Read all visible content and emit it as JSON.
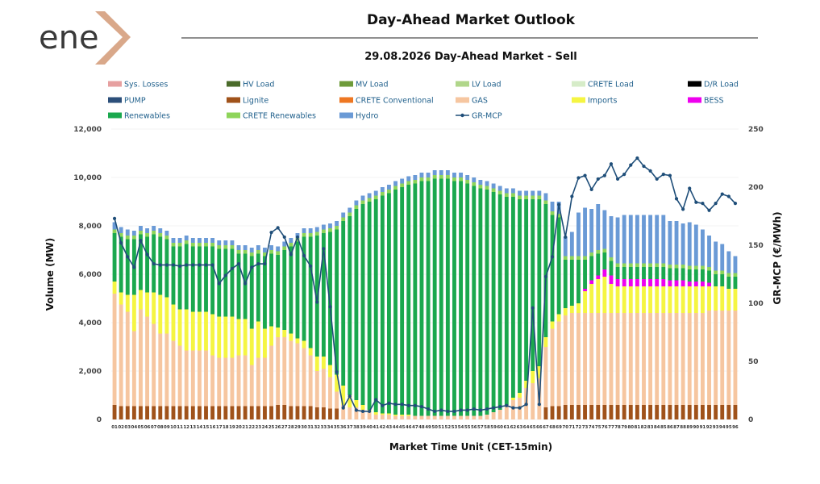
{
  "logo": {
    "text": "ene",
    "accent_color": "#d9a88a"
  },
  "chart_data": {
    "type": "bar",
    "title": "Day-Ahead Market Outlook",
    "subtitle": "29.08.2026  Day-Ahead Market - Sell",
    "xlabel": "Market Time Unit (CET-15min)",
    "ylabel": "Volume (MW)",
    "y2label": "GR-MCP (€/MWh)",
    "ylim": [
      0,
      12000
    ],
    "y2lim": [
      0,
      250
    ],
    "yticks": [
      "0",
      "2,000",
      "4,000",
      "6,000",
      "8,000",
      "10,000",
      "12,000"
    ],
    "y2ticks": [
      "0",
      "50",
      "100",
      "150",
      "200",
      "250"
    ],
    "categories": [
      "01",
      "02",
      "03",
      "04",
      "05",
      "06",
      "07",
      "08",
      "09",
      "10",
      "11",
      "12",
      "13",
      "14",
      "15",
      "16",
      "17",
      "18",
      "19",
      "20",
      "21",
      "22",
      "23",
      "24",
      "25",
      "26",
      "27",
      "28",
      "29",
      "30",
      "31",
      "32",
      "33",
      "34",
      "35",
      "36",
      "37",
      "38",
      "39",
      "40",
      "41",
      "42",
      "43",
      "44",
      "45",
      "46",
      "47",
      "48",
      "49",
      "50",
      "51",
      "52",
      "53",
      "54",
      "55",
      "56",
      "57",
      "58",
      "59",
      "60",
      "61",
      "62",
      "63",
      "64",
      "65",
      "66",
      "67",
      "68",
      "69",
      "70",
      "71",
      "72",
      "73",
      "74",
      "75",
      "76",
      "77",
      "78",
      "79",
      "80",
      "81",
      "82",
      "83",
      "84",
      "85",
      "86",
      "87",
      "88",
      "89",
      "90",
      "91",
      "92",
      "93",
      "94",
      "95",
      "96"
    ],
    "legend": [
      {
        "name": "Sys. Losses",
        "color": "#e6a0a0"
      },
      {
        "name": "HV Load",
        "color": "#4a6b2a"
      },
      {
        "name": "MV Load",
        "color": "#6e9b3a"
      },
      {
        "name": "LV Load",
        "color": "#b0d68a"
      },
      {
        "name": "CRETE Load",
        "color": "#d6ecc8"
      },
      {
        "name": "D/R Load",
        "color": "#000000"
      },
      {
        "name": "PUMP",
        "color": "#2c4f7a"
      },
      {
        "name": "Lignite",
        "color": "#a0521a"
      },
      {
        "name": "CRETE Conventional",
        "color": "#ee7722"
      },
      {
        "name": "GAS",
        "color": "#f6c6a0"
      },
      {
        "name": "Imports",
        "color": "#f5f542"
      },
      {
        "name": "BESS",
        "color": "#ee00ee"
      },
      {
        "name": "Renewables",
        "color": "#1aa84e"
      },
      {
        "name": "CRETE Renewables",
        "color": "#8ed45a"
      },
      {
        "name": "Hydro",
        "color": "#6a9ad6"
      },
      {
        "name": "GR-MCP",
        "color": "#1f4e79"
      }
    ],
    "series": [
      {
        "name": "Lignite",
        "color": "#a0521a",
        "values": [
          600,
          550,
          550,
          550,
          550,
          550,
          550,
          550,
          550,
          550,
          550,
          550,
          550,
          550,
          550,
          550,
          550,
          550,
          550,
          550,
          550,
          550,
          550,
          550,
          550,
          600,
          600,
          550,
          550,
          550,
          550,
          500,
          500,
          450,
          450,
          0,
          0,
          0,
          0,
          0,
          0,
          0,
          0,
          0,
          0,
          0,
          0,
          0,
          0,
          0,
          0,
          0,
          0,
          0,
          0,
          0,
          0,
          0,
          0,
          0,
          0,
          0,
          0,
          0,
          0,
          0,
          500,
          550,
          550,
          600,
          600,
          600,
          600,
          600,
          600,
          600,
          600,
          600,
          600,
          600,
          600,
          600,
          600,
          600,
          600,
          600,
          600,
          600,
          600,
          600,
          600,
          600,
          600,
          600,
          600,
          600
        ]
      },
      {
        "name": "GAS",
        "color": "#f6c6a0",
        "values": [
          4600,
          4200,
          3900,
          3100,
          4000,
          3700,
          3400,
          3000,
          3000,
          2700,
          2500,
          2300,
          2300,
          2300,
          2300,
          2100,
          2000,
          2000,
          2000,
          2100,
          2100,
          1700,
          2000,
          2000,
          2500,
          2800,
          2800,
          2700,
          2600,
          2400,
          2100,
          1500,
          1600,
          1300,
          700,
          600,
          500,
          500,
          400,
          300,
          200,
          200,
          200,
          150,
          150,
          150,
          150,
          150,
          150,
          150,
          150,
          150,
          150,
          150,
          150,
          150,
          150,
          200,
          300,
          400,
          600,
          800,
          900,
          1300,
          1500,
          1700,
          2500,
          3200,
          3500,
          3700,
          3800,
          3800,
          3800,
          3800,
          3800,
          3800,
          3800,
          3800,
          3800,
          3800,
          3800,
          3800,
          3800,
          3800,
          3800,
          3800,
          3800,
          3800,
          3800,
          3800,
          3800,
          3900,
          3900,
          3900,
          3900,
          3900
        ]
      },
      {
        "name": "Imports",
        "color": "#f5f542",
        "values": [
          500,
          500,
          700,
          1500,
          800,
          1000,
          1300,
          1600,
          1500,
          1500,
          1500,
          1700,
          1600,
          1600,
          1600,
          1700,
          1700,
          1700,
          1700,
          1500,
          1500,
          1500,
          1500,
          1200,
          800,
          400,
          300,
          300,
          200,
          300,
          300,
          600,
          500,
          500,
          700,
          800,
          500,
          300,
          200,
          100,
          100,
          50,
          50,
          50,
          50,
          50,
          0,
          0,
          0,
          0,
          0,
          0,
          0,
          0,
          0,
          0,
          0,
          0,
          0,
          0,
          0,
          100,
          200,
          300,
          500,
          500,
          400,
          300,
          300,
          300,
          300,
          400,
          900,
          1200,
          1400,
          1500,
          1200,
          1100,
          1100,
          1100,
          1100,
          1100,
          1100,
          1100,
          1100,
          1100,
          1100,
          1100,
          1100,
          1100,
          1100,
          1000,
          1000,
          1000,
          900,
          900
        ]
      },
      {
        "name": "BESS",
        "color": "#ee00ee",
        "values": [
          0,
          0,
          0,
          0,
          0,
          0,
          0,
          0,
          0,
          0,
          0,
          0,
          0,
          0,
          0,
          0,
          0,
          0,
          0,
          0,
          0,
          0,
          0,
          0,
          0,
          0,
          0,
          0,
          0,
          0,
          0,
          0,
          0,
          0,
          0,
          0,
          0,
          0,
          0,
          0,
          0,
          0,
          0,
          0,
          0,
          0,
          0,
          0,
          0,
          0,
          0,
          0,
          0,
          0,
          0,
          0,
          0,
          0,
          0,
          0,
          0,
          0,
          0,
          0,
          0,
          0,
          0,
          0,
          0,
          0,
          0,
          0,
          100,
          150,
          150,
          300,
          350,
          300,
          300,
          300,
          300,
          300,
          300,
          300,
          300,
          250,
          250,
          250,
          200,
          200,
          200,
          150,
          0,
          0,
          0,
          0
        ]
      },
      {
        "name": "Renewables",
        "color": "#1aa84e",
        "values": [
          2000,
          2300,
          2300,
          2300,
          2300,
          2300,
          2400,
          2400,
          2400,
          2400,
          2600,
          2700,
          2700,
          2700,
          2700,
          2800,
          2800,
          2800,
          2800,
          2700,
          2700,
          3000,
          2800,
          3000,
          3000,
          3000,
          3300,
          3600,
          4000,
          4300,
          4600,
          5000,
          5100,
          5500,
          6000,
          6800,
          7400,
          7900,
          8300,
          8600,
          8800,
          9000,
          9100,
          9300,
          9400,
          9500,
          9600,
          9700,
          9700,
          9800,
          9800,
          9800,
          9700,
          9700,
          9600,
          9500,
          9400,
          9300,
          9100,
          8900,
          8600,
          8300,
          8000,
          7500,
          7100,
          6900,
          5500,
          4400,
          4000,
          2000,
          1900,
          1800,
          1200,
          1000,
          900,
          700,
          600,
          500,
          500,
          500,
          500,
          500,
          500,
          500,
          500,
          500,
          500,
          500,
          500,
          500,
          500,
          500,
          500,
          500,
          500,
          500
        ]
      },
      {
        "name": "CRETE Renewables",
        "color": "#8ed45a",
        "values": [
          150,
          150,
          150,
          150,
          150,
          150,
          150,
          150,
          150,
          150,
          150,
          150,
          150,
          150,
          150,
          150,
          150,
          150,
          150,
          150,
          150,
          150,
          150,
          150,
          150,
          150,
          150,
          150,
          150,
          150,
          150,
          150,
          150,
          150,
          150,
          150,
          150,
          150,
          150,
          150,
          150,
          150,
          150,
          150,
          150,
          150,
          150,
          150,
          150,
          150,
          150,
          150,
          150,
          150,
          150,
          150,
          150,
          150,
          150,
          150,
          150,
          150,
          150,
          150,
          150,
          150,
          150,
          150,
          150,
          150,
          150,
          150,
          150,
          150,
          150,
          150,
          150,
          150,
          150,
          150,
          150,
          150,
          150,
          150,
          150,
          150,
          150,
          150,
          150,
          150,
          150,
          150,
          150,
          150,
          150,
          150
        ]
      },
      {
        "name": "Hydro",
        "color": "#6a9ad6",
        "values": [
          300,
          250,
          250,
          200,
          200,
          200,
          200,
          200,
          200,
          200,
          200,
          200,
          200,
          200,
          200,
          200,
          200,
          200,
          200,
          200,
          200,
          200,
          200,
          200,
          200,
          200,
          200,
          200,
          200,
          200,
          200,
          200,
          200,
          200,
          200,
          200,
          200,
          200,
          200,
          200,
          200,
          200,
          200,
          200,
          200,
          200,
          200,
          200,
          200,
          200,
          200,
          200,
          200,
          200,
          200,
          200,
          200,
          200,
          200,
          200,
          200,
          200,
          200,
          200,
          200,
          200,
          300,
          400,
          500,
          800,
          1000,
          1800,
          2000,
          1800,
          1900,
          1600,
          1700,
          1900,
          2000,
          2000,
          2000,
          2000,
          2000,
          2000,
          2000,
          1800,
          1800,
          1700,
          1800,
          1700,
          1500,
          1300,
          1200,
          1100,
          900,
          700
        ]
      }
    ],
    "line": {
      "name": "GR-MCP",
      "color": "#1f4e79",
      "values": [
        173,
        152,
        140,
        131,
        154,
        142,
        134,
        133,
        133,
        133,
        132,
        133,
        133,
        133,
        133,
        133,
        117,
        124,
        130,
        134,
        117,
        131,
        134,
        134,
        161,
        165,
        157,
        142,
        157,
        141,
        132,
        101,
        147,
        97,
        41,
        10,
        20,
        8,
        7,
        7,
        17,
        12,
        14,
        13,
        13,
        12,
        12,
        11,
        9,
        7,
        8,
        7,
        7,
        8,
        8,
        9,
        8,
        9,
        10,
        11,
        12,
        10,
        10,
        13,
        96,
        13,
        123,
        140,
        185,
        157,
        192,
        208,
        210,
        198,
        207,
        210,
        220,
        207,
        211,
        219,
        225,
        218,
        214,
        207,
        211,
        210,
        190,
        181,
        199,
        187,
        186,
        180,
        186,
        194,
        192,
        186
      ]
    }
  }
}
